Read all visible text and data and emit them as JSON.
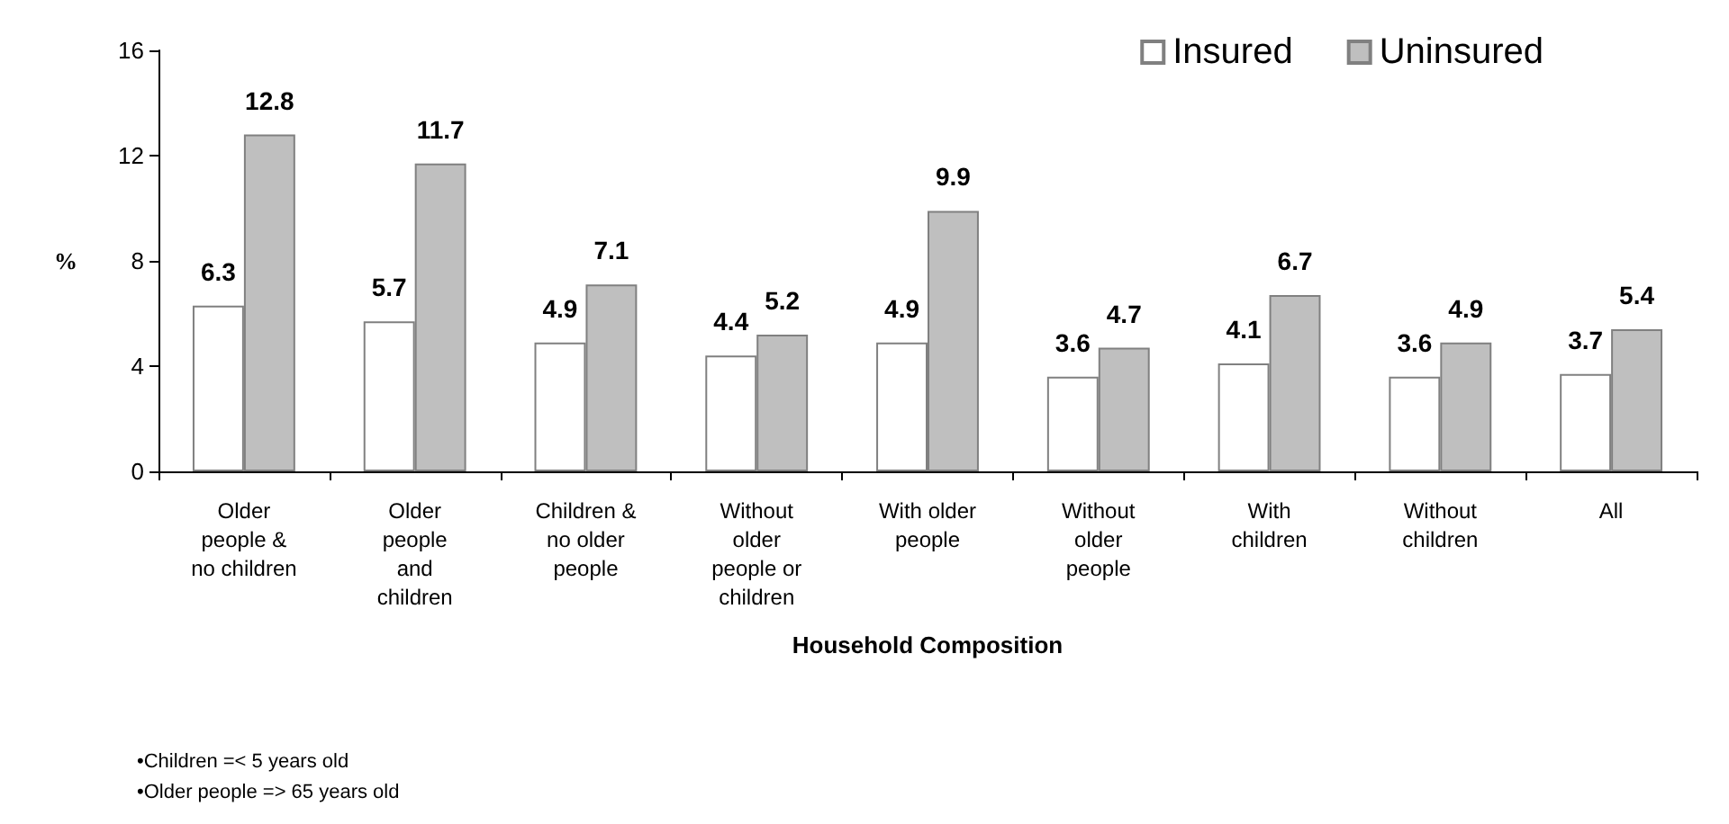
{
  "chart_data": {
    "type": "bar",
    "ylabel": "%",
    "xlabel": "Household Composition",
    "categories": [
      "Older\npeople &\nno children",
      "Older\npeople\nand\nchildren",
      "Children &\nno older\npeople",
      "Without\nolder\npeople or\nchildren",
      "With older\npeople",
      "Without\nolder\npeople",
      "With\nchildren",
      "Without\nchildren",
      "All"
    ],
    "series": [
      {
        "name": "Insured",
        "color": "#ffffff",
        "values": [
          6.3,
          5.7,
          4.9,
          4.4,
          4.9,
          3.6,
          4.1,
          3.6,
          3.7
        ]
      },
      {
        "name": "Uninsured",
        "color": "#bfbfbf",
        "values": [
          12.8,
          11.7,
          7.1,
          5.2,
          9.9,
          4.7,
          6.7,
          4.9,
          5.4
        ]
      }
    ],
    "ylim": [
      0,
      16
    ],
    "yticks": [
      0,
      4,
      8,
      12,
      16
    ],
    "grid": false,
    "legend": "top right",
    "data_labels": true,
    "annotations": [
      "•Children =< 5 years old",
      "•Older people => 65 years old"
    ]
  }
}
